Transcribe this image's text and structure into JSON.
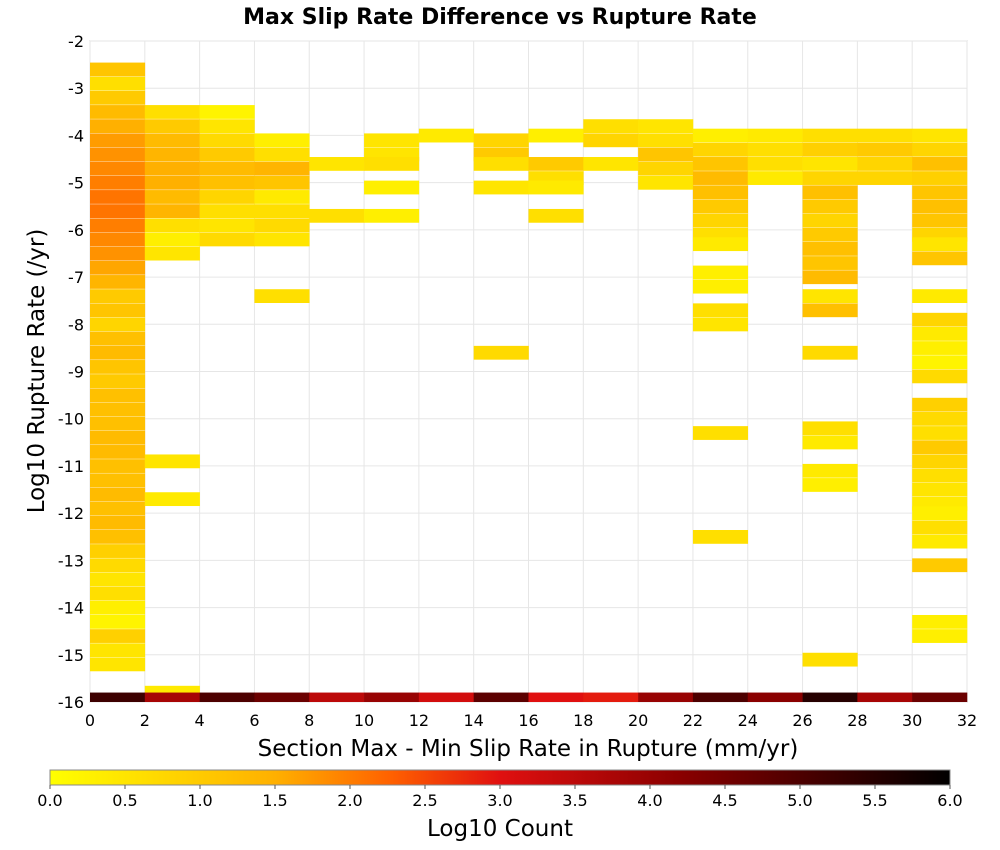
{
  "chart_data": {
    "type": "heatmap",
    "title": "Max Slip Rate Difference vs Rupture Rate",
    "xlabel": "Section Max - Min Slip Rate in Rupture (mm/yr)",
    "ylabel": "Log10 Rupture Rate (/yr)",
    "xlim": [
      0,
      32
    ],
    "ylim": [
      -16,
      -2
    ],
    "x_ticks": [
      0,
      2,
      4,
      6,
      8,
      10,
      12,
      14,
      16,
      18,
      20,
      22,
      24,
      26,
      28,
      30,
      32
    ],
    "y_ticks": [
      -2,
      -3,
      -4,
      -5,
      -6,
      -7,
      -8,
      -9,
      -10,
      -11,
      -12,
      -13,
      -14,
      -15,
      -16
    ],
    "x_bin_width": 2,
    "y_bin_width": 0.2857,
    "grid": true,
    "colorbar": {
      "label": "Log10 Count",
      "min": 0.0,
      "max": 6.0,
      "ticks": [
        "0.0",
        "0.5",
        "1.0",
        "1.5",
        "2.0",
        "2.5",
        "3.0",
        "3.5",
        "4.0",
        "4.5",
        "5.0",
        "5.5",
        "6.0"
      ],
      "colormap": [
        "#ffff00",
        "#ff8000",
        "#e01010",
        "#000000"
      ],
      "placement": "bottom"
    },
    "columns": [
      {
        "x_range": [
          0,
          2
        ],
        "cells": [
          [
            -2.6,
            1.1
          ],
          [
            -2.9,
            0.6
          ],
          [
            -3.2,
            1.0
          ],
          [
            -3.5,
            1.3
          ],
          [
            -3.8,
            1.5
          ],
          [
            -4.1,
            1.7
          ],
          [
            -4.4,
            1.8
          ],
          [
            -4.7,
            1.9
          ],
          [
            -5.0,
            2.0
          ],
          [
            -5.3,
            2.1
          ],
          [
            -5.6,
            2.1
          ],
          [
            -5.9,
            2.0
          ],
          [
            -6.2,
            1.9
          ],
          [
            -6.5,
            1.8
          ],
          [
            -6.8,
            1.6
          ],
          [
            -7.1,
            1.4
          ],
          [
            -7.4,
            1.0
          ],
          [
            -7.7,
            1.1
          ],
          [
            -8.0,
            0.8
          ],
          [
            -8.3,
            1.2
          ],
          [
            -8.6,
            1.3
          ],
          [
            -8.9,
            1.1
          ],
          [
            -9.2,
            1.0
          ],
          [
            -9.5,
            1.2
          ],
          [
            -9.8,
            1.2
          ],
          [
            -10.1,
            1.2
          ],
          [
            -10.4,
            1.3
          ],
          [
            -10.7,
            1.3
          ],
          [
            -11.0,
            1.2
          ],
          [
            -11.3,
            1.2
          ],
          [
            -11.6,
            1.3
          ],
          [
            -11.9,
            1.2
          ],
          [
            -12.2,
            1.3
          ],
          [
            -12.5,
            1.2
          ],
          [
            -12.8,
            0.9
          ],
          [
            -13.1,
            0.7
          ],
          [
            -13.4,
            0.5
          ],
          [
            -13.7,
            0.6
          ],
          [
            -14.0,
            0.3
          ],
          [
            -14.3,
            0.2
          ],
          [
            -14.6,
            0.9
          ],
          [
            -14.9,
            0.5
          ],
          [
            -15.2,
            0.5
          ]
        ]
      },
      {
        "x_range": [
          2,
          4
        ],
        "cells": [
          [
            -3.5,
            0.6
          ],
          [
            -3.8,
            1.0
          ],
          [
            -4.1,
            1.3
          ],
          [
            -4.4,
            1.4
          ],
          [
            -4.7,
            1.5
          ],
          [
            -5.0,
            1.5
          ],
          [
            -5.3,
            1.3
          ],
          [
            -5.6,
            1.4
          ],
          [
            -5.9,
            0.6
          ],
          [
            -6.2,
            0.3
          ],
          [
            -6.5,
            0.5
          ],
          [
            -10.9,
            0.5
          ],
          [
            -11.7,
            0.4
          ],
          [
            -15.8,
            0.4
          ]
        ]
      },
      {
        "x_range": [
          4,
          6
        ],
        "cells": [
          [
            -3.5,
            0.2
          ],
          [
            -3.8,
            0.5
          ],
          [
            -4.1,
            0.7
          ],
          [
            -4.4,
            1.0
          ],
          [
            -4.7,
            1.3
          ],
          [
            -5.0,
            1.2
          ],
          [
            -5.3,
            0.8
          ],
          [
            -5.6,
            0.6
          ],
          [
            -5.9,
            0.5
          ],
          [
            -6.2,
            0.7
          ]
        ]
      },
      {
        "x_range": [
          6,
          8
        ],
        "cells": [
          [
            -4.1,
            0.3
          ],
          [
            -4.4,
            0.6
          ],
          [
            -4.7,
            1.4
          ],
          [
            -5.0,
            1.1
          ],
          [
            -5.3,
            0.4
          ],
          [
            -5.6,
            0.6
          ],
          [
            -5.9,
            0.7
          ],
          [
            -6.2,
            0.5
          ],
          [
            -7.4,
            0.6
          ]
        ]
      },
      {
        "x_range": [
          8,
          10
        ],
        "cells": [
          [
            -4.6,
            0.5
          ],
          [
            -5.7,
            0.6
          ]
        ]
      },
      {
        "x_range": [
          10,
          12
        ],
        "cells": [
          [
            -4.1,
            0.5
          ],
          [
            -4.4,
            0.5
          ],
          [
            -4.6,
            0.6
          ],
          [
            -5.1,
            0.3
          ],
          [
            -5.7,
            0.3
          ]
        ]
      },
      {
        "x_range": [
          12,
          14
        ],
        "cells": [
          [
            -4.0,
            0.4
          ]
        ]
      },
      {
        "x_range": [
          14,
          16
        ],
        "cells": [
          [
            -4.1,
            0.8
          ],
          [
            -4.4,
            1.0
          ],
          [
            -4.6,
            0.6
          ],
          [
            -5.1,
            0.5
          ],
          [
            -8.6,
            0.7
          ]
        ]
      },
      {
        "x_range": [
          16,
          18
        ],
        "cells": [
          [
            -4.0,
            0.3
          ],
          [
            -4.6,
            1.0
          ],
          [
            -4.9,
            0.6
          ],
          [
            -5.1,
            0.4
          ],
          [
            -5.7,
            0.6
          ]
        ]
      },
      {
        "x_range": [
          18,
          20
        ],
        "cells": [
          [
            -3.8,
            0.6
          ],
          [
            -4.1,
            0.8
          ],
          [
            -4.6,
            0.5
          ]
        ]
      },
      {
        "x_range": [
          20,
          22
        ],
        "cells": [
          [
            -3.8,
            0.5
          ],
          [
            -4.1,
            0.6
          ],
          [
            -4.4,
            1.1
          ],
          [
            -4.7,
            0.8
          ],
          [
            -5.0,
            0.5
          ]
        ]
      },
      {
        "x_range": [
          22,
          24
        ],
        "cells": [
          [
            -4.0,
            0.3
          ],
          [
            -4.3,
            0.8
          ],
          [
            -4.6,
            1.1
          ],
          [
            -4.9,
            1.3
          ],
          [
            -5.2,
            1.2
          ],
          [
            -5.5,
            1.0
          ],
          [
            -5.8,
            0.8
          ],
          [
            -6.1,
            0.6
          ],
          [
            -6.3,
            0.4
          ],
          [
            -6.9,
            0.3
          ],
          [
            -7.2,
            0.3
          ],
          [
            -7.7,
            0.6
          ],
          [
            -8.0,
            0.5
          ],
          [
            -10.3,
            0.6
          ],
          [
            -12.5,
            0.6
          ]
        ]
      },
      {
        "x_range": [
          24,
          26
        ],
        "cells": [
          [
            -4.0,
            0.4
          ],
          [
            -4.3,
            0.6
          ],
          [
            -4.6,
            0.6
          ],
          [
            -4.9,
            0.4
          ]
        ]
      },
      {
        "x_range": [
          26,
          28
        ],
        "cells": [
          [
            -4.0,
            0.6
          ],
          [
            -4.3,
            0.9
          ],
          [
            -4.6,
            0.5
          ],
          [
            -4.9,
            0.8
          ],
          [
            -5.2,
            1.2
          ],
          [
            -5.5,
            1.0
          ],
          [
            -5.8,
            0.8
          ],
          [
            -6.1,
            1.0
          ],
          [
            -6.4,
            1.2
          ],
          [
            -6.7,
            1.1
          ],
          [
            -7.0,
            1.3
          ],
          [
            -7.4,
            0.5
          ],
          [
            -7.7,
            1.2
          ],
          [
            -8.6,
            0.7
          ],
          [
            -10.2,
            0.6
          ],
          [
            -10.5,
            0.4
          ],
          [
            -11.1,
            0.4
          ],
          [
            -11.4,
            0.3
          ],
          [
            -15.1,
            0.6
          ]
        ]
      },
      {
        "x_range": [
          28,
          30
        ],
        "cells": [
          [
            -4.0,
            0.6
          ],
          [
            -4.3,
            1.0
          ],
          [
            -4.6,
            0.8
          ],
          [
            -4.9,
            0.8
          ]
        ]
      },
      {
        "x_range": [
          30,
          32
        ],
        "cells": [
          [
            -4.0,
            0.5
          ],
          [
            -4.3,
            0.8
          ],
          [
            -4.6,
            1.2
          ],
          [
            -4.9,
            0.9
          ],
          [
            -5.2,
            1.1
          ],
          [
            -5.5,
            1.2
          ],
          [
            -5.8,
            1.1
          ],
          [
            -6.1,
            0.8
          ],
          [
            -6.3,
            0.5
          ],
          [
            -6.6,
            1.1
          ],
          [
            -7.4,
            0.4
          ],
          [
            -7.9,
            0.8
          ],
          [
            -8.2,
            0.4
          ],
          [
            -8.5,
            0.3
          ],
          [
            -8.8,
            0.2
          ],
          [
            -9.1,
            0.7
          ],
          [
            -9.7,
            0.9
          ],
          [
            -10.0,
            0.7
          ],
          [
            -10.3,
            0.6
          ],
          [
            -10.6,
            1.0
          ],
          [
            -10.9,
            0.8
          ],
          [
            -11.2,
            0.6
          ],
          [
            -11.5,
            0.5
          ],
          [
            -11.8,
            0.4
          ],
          [
            -12.0,
            0.3
          ],
          [
            -12.3,
            0.6
          ],
          [
            -12.6,
            0.4
          ],
          [
            -13.1,
            1.0
          ],
          [
            -14.3,
            0.3
          ],
          [
            -14.6,
            0.3
          ]
        ]
      }
    ],
    "bottom_row": {
      "y": -15.9,
      "values": [
        5.2,
        3.8,
        5.0,
        4.6,
        3.5,
        4.0,
        3.2,
        4.8,
        3.0,
        2.9,
        4.0,
        5.0,
        4.2,
        5.5,
        3.8,
        4.6
      ]
    }
  }
}
